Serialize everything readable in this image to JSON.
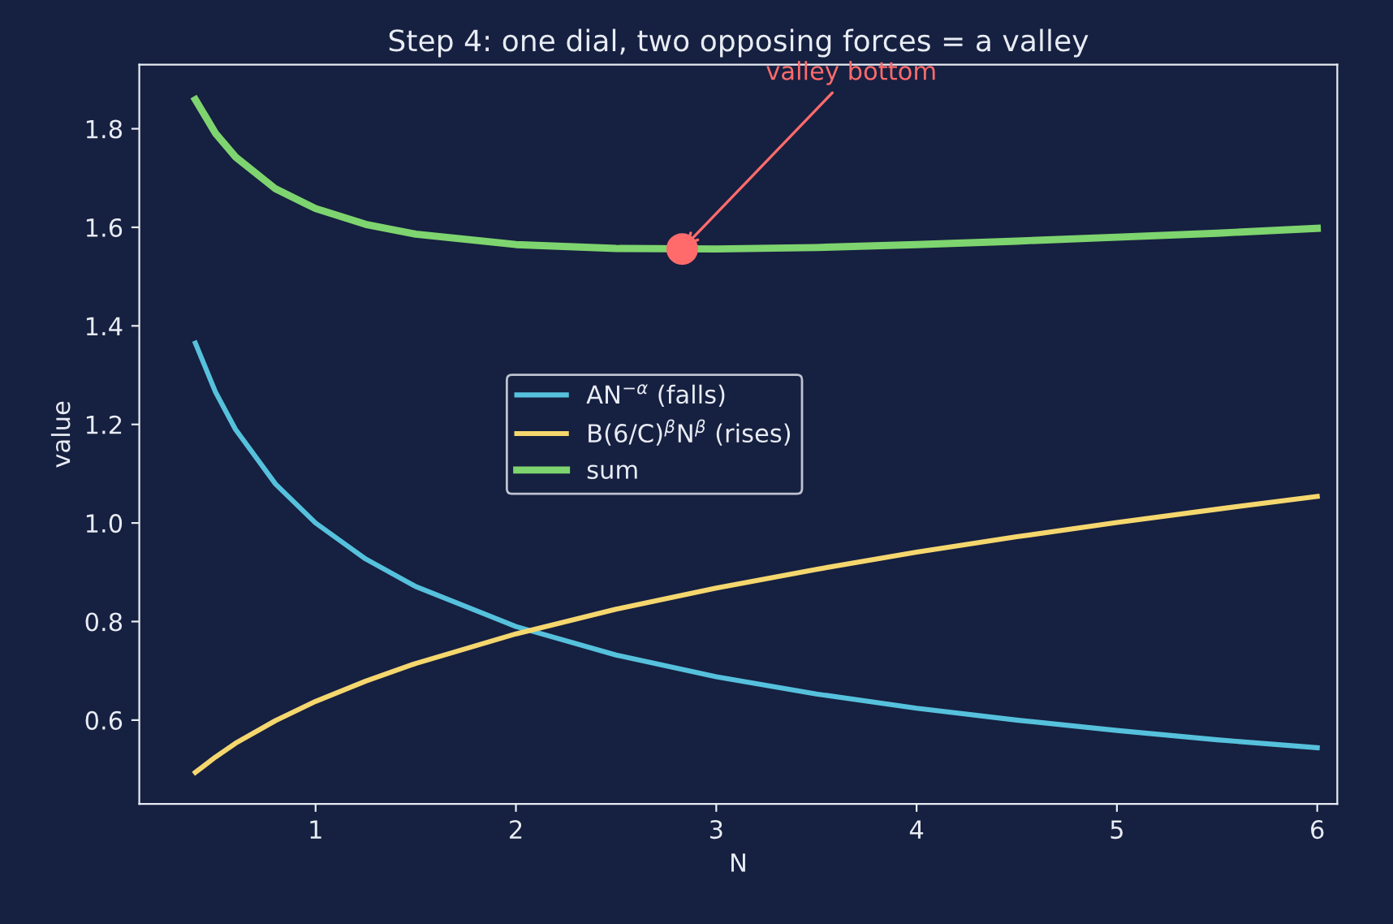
{
  "chart_data": {
    "type": "line",
    "title": "Step 4: one dial, two opposing forces = a valley",
    "xlabel": "N",
    "ylabel": "value",
    "x": [
      0.4,
      0.5,
      0.6,
      0.8,
      1,
      1.25,
      1.5,
      2,
      2.5,
      3,
      3.5,
      4,
      4.5,
      5,
      5.5,
      6
    ],
    "series": [
      {
        "name": "AN$^{−α}$ (falls)",
        "color": "#56c1dc",
        "values": [
          1.365,
          1.266,
          1.19,
          1.079,
          1.0,
          0.927,
          0.871,
          0.79,
          0.732,
          0.688,
          0.653,
          0.624,
          0.6,
          0.579,
          0.56,
          0.544
        ]
      },
      {
        "name": "B(6/C)$^{β}$N$^{β}$ (rises)",
        "color": "#f5d76e",
        "values": [
          0.494,
          0.525,
          0.553,
          0.599,
          0.638,
          0.679,
          0.715,
          0.775,
          0.825,
          0.868,
          0.906,
          0.941,
          0.972,
          1.001,
          1.028,
          1.054
        ]
      },
      {
        "name": "sum",
        "color": "#7ed46e",
        "values": [
          1.859,
          1.791,
          1.743,
          1.678,
          1.638,
          1.606,
          1.586,
          1.565,
          1.557,
          1.556,
          1.559,
          1.565,
          1.572,
          1.58,
          1.588,
          1.598
        ]
      },
      {
        "type": "scatter",
        "color": "#ff6b6b",
        "marker": "circle",
        "x": [
          2.83
        ],
        "values": [
          1.556
        ]
      }
    ],
    "annotations": [
      {
        "text": "valley bottom",
        "x": 2.83,
        "y": 1.556
      }
    ],
    "xlim": [
      0.12,
      6.1
    ],
    "ylim": [
      0.43,
      1.93
    ],
    "xticks": [
      1,
      2,
      3,
      4,
      5,
      6
    ],
    "yticks": [
      {
        "value": 0.6,
        "label": "0.6"
      },
      {
        "value": 0.8,
        "label": "0.8"
      },
      {
        "value": 1.0,
        "label": "1.0"
      },
      {
        "value": 1.2,
        "label": "1.2"
      },
      {
        "value": 1.4,
        "label": "1.4"
      },
      {
        "value": 1.6,
        "label": "1.6"
      },
      {
        "value": 1.8,
        "label": "1.8"
      }
    ],
    "grid": false,
    "legend": "center",
    "marker": "none",
    "line_style": "solid"
  }
}
